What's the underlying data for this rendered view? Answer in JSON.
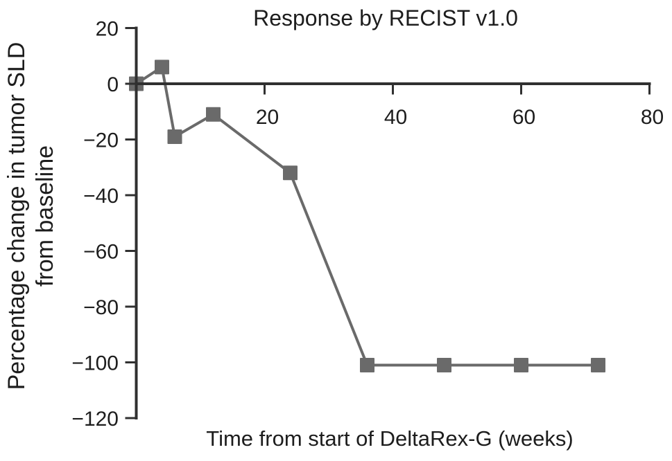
{
  "chart_data": {
    "type": "line",
    "title": "Response by RECIST v1.0",
    "xlabel": "Time from start of DeltaRex-G (weeks)",
    "ylabel": "Percentage change in tumor SLD from baseline",
    "ylabel_lines": [
      "Percentage change in tumor SLD",
      "from baseline"
    ],
    "x": [
      0,
      4,
      6,
      12,
      24,
      36,
      48,
      60,
      72
    ],
    "y": [
      0,
      6,
      -19,
      -11,
      -32,
      -101,
      -101,
      -101,
      -101
    ],
    "xticks": [
      20,
      40,
      60,
      80
    ],
    "yticks": [
      20,
      0,
      -20,
      -40,
      -60,
      -80,
      -100,
      -120
    ],
    "xlim": [
      0,
      80
    ],
    "ylim": [
      -120,
      20
    ],
    "grid": false,
    "legend_position": "none",
    "marker": "square",
    "colors": {
      "series": "#6a6a6a",
      "axis": "#303030",
      "text": "#1d1d1d",
      "background": "#ffffff"
    }
  }
}
